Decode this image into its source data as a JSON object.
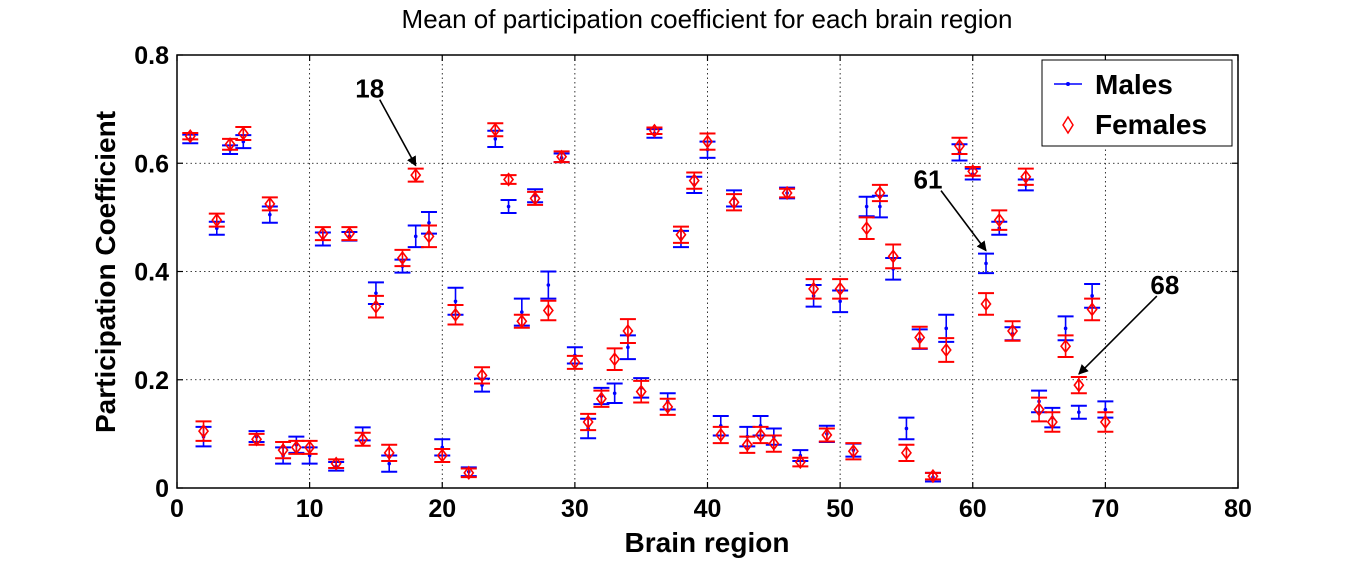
{
  "chart_data": {
    "type": "scatter",
    "title": "Mean of participation coefficient for each brain region",
    "xlabel": "Brain region",
    "ylabel": "Participation Coefficient",
    "xlim": [
      0,
      80
    ],
    "ylim": [
      0,
      0.8
    ],
    "xticks": [
      0,
      10,
      20,
      30,
      40,
      50,
      60,
      70,
      80
    ],
    "yticks": [
      0,
      0.2,
      0.4,
      0.6,
      0.8
    ],
    "xtick_labels": [
      "0",
      "10",
      "20",
      "30",
      "40",
      "50",
      "60",
      "70",
      "80"
    ],
    "ytick_labels": [
      "0",
      "0.2",
      "0.4",
      "0.6",
      "0.8"
    ],
    "grid": true,
    "legend_position": "top-right",
    "series": [
      {
        "name": "Males",
        "color": "#0000ff",
        "marker": "dot",
        "x": [
          1,
          2,
          3,
          4,
          5,
          6,
          7,
          8,
          9,
          10,
          11,
          12,
          13,
          14,
          15,
          16,
          17,
          18,
          19,
          20,
          21,
          22,
          23,
          24,
          25,
          26,
          27,
          28,
          29,
          30,
          31,
          32,
          33,
          34,
          35,
          36,
          37,
          38,
          39,
          40,
          41,
          42,
          43,
          44,
          45,
          46,
          47,
          48,
          49,
          50,
          51,
          52,
          53,
          54,
          55,
          56,
          57,
          58,
          59,
          60,
          61,
          62,
          63,
          64,
          65,
          66,
          67,
          68,
          69,
          70
        ],
        "y": [
          0.645,
          0.095,
          0.48,
          0.625,
          0.64,
          0.095,
          0.505,
          0.06,
          0.08,
          0.06,
          0.46,
          0.04,
          0.465,
          0.1,
          0.36,
          0.045,
          0.41,
          0.465,
          0.49,
          0.075,
          0.345,
          0.03,
          0.19,
          0.645,
          0.52,
          0.325,
          0.54,
          0.375,
          0.61,
          0.245,
          0.11,
          0.17,
          0.175,
          0.26,
          0.185,
          0.655,
          0.16,
          0.46,
          0.56,
          0.625,
          0.115,
          0.535,
          0.095,
          0.115,
          0.095,
          0.545,
          0.06,
          0.355,
          0.1,
          0.345,
          0.07,
          0.52,
          0.52,
          0.405,
          0.11,
          0.275,
          0.02,
          0.295,
          0.62,
          0.58,
          0.415,
          0.48,
          0.285,
          0.56,
          0.16,
          0.13,
          0.295,
          0.14,
          0.355,
          0.145
        ],
        "error": [
          0.008,
          0.018,
          0.012,
          0.008,
          0.012,
          0.01,
          0.015,
          0.015,
          0.015,
          0.015,
          0.012,
          0.008,
          0.008,
          0.012,
          0.02,
          0.015,
          0.012,
          0.02,
          0.02,
          0.015,
          0.025,
          0.008,
          0.012,
          0.015,
          0.012,
          0.025,
          0.012,
          0.025,
          0.008,
          0.015,
          0.018,
          0.015,
          0.018,
          0.022,
          0.018,
          0.008,
          0.015,
          0.015,
          0.015,
          0.015,
          0.018,
          0.015,
          0.018,
          0.018,
          0.015,
          0.01,
          0.01,
          0.02,
          0.015,
          0.02,
          0.012,
          0.018,
          0.02,
          0.02,
          0.02,
          0.018,
          0.008,
          0.025,
          0.015,
          0.01,
          0.018,
          0.012,
          0.012,
          0.01,
          0.02,
          0.018,
          0.022,
          0.012,
          0.022,
          0.015
        ]
      },
      {
        "name": "Females",
        "color": "#ff0000",
        "marker": "diamond",
        "x": [
          1,
          2,
          3,
          4,
          5,
          6,
          7,
          8,
          9,
          10,
          11,
          12,
          13,
          14,
          15,
          16,
          17,
          18,
          19,
          20,
          21,
          22,
          23,
          24,
          25,
          26,
          27,
          28,
          29,
          30,
          31,
          32,
          33,
          34,
          35,
          36,
          37,
          38,
          39,
          40,
          41,
          42,
          43,
          44,
          45,
          46,
          47,
          48,
          49,
          50,
          51,
          52,
          53,
          54,
          55,
          56,
          57,
          58,
          59,
          60,
          61,
          62,
          63,
          64,
          65,
          66,
          67,
          68,
          69,
          70
        ],
        "y": [
          0.65,
          0.105,
          0.495,
          0.635,
          0.655,
          0.09,
          0.525,
          0.07,
          0.075,
          0.075,
          0.47,
          0.045,
          0.47,
          0.09,
          0.335,
          0.065,
          0.425,
          0.578,
          0.465,
          0.06,
          0.32,
          0.028,
          0.208,
          0.662,
          0.57,
          0.308,
          0.535,
          0.328,
          0.612,
          0.232,
          0.122,
          0.165,
          0.238,
          0.29,
          0.178,
          0.66,
          0.15,
          0.468,
          0.568,
          0.64,
          0.098,
          0.528,
          0.08,
          0.098,
          0.082,
          0.545,
          0.048,
          0.368,
          0.098,
          0.368,
          0.068,
          0.48,
          0.545,
          0.428,
          0.065,
          0.278,
          0.022,
          0.255,
          0.632,
          0.585,
          0.34,
          0.495,
          0.29,
          0.575,
          0.145,
          0.122,
          0.262,
          0.19,
          0.33,
          0.122
        ],
        "error": [
          0.006,
          0.018,
          0.012,
          0.01,
          0.012,
          0.01,
          0.012,
          0.015,
          0.012,
          0.012,
          0.012,
          0.008,
          0.012,
          0.012,
          0.02,
          0.015,
          0.015,
          0.012,
          0.02,
          0.012,
          0.018,
          0.008,
          0.015,
          0.012,
          0.008,
          0.012,
          0.012,
          0.018,
          0.01,
          0.012,
          0.015,
          0.015,
          0.02,
          0.022,
          0.02,
          0.006,
          0.015,
          0.015,
          0.015,
          0.015,
          0.015,
          0.015,
          0.015,
          0.015,
          0.015,
          0.008,
          0.008,
          0.018,
          0.012,
          0.018,
          0.015,
          0.02,
          0.015,
          0.022,
          0.015,
          0.02,
          0.006,
          0.022,
          0.015,
          0.008,
          0.02,
          0.018,
          0.018,
          0.015,
          0.022,
          0.018,
          0.02,
          0.015,
          0.02,
          0.018
        ]
      }
    ],
    "annotations": [
      {
        "text": "18",
        "x": 18
      },
      {
        "text": "61",
        "x": 61
      },
      {
        "text": "68",
        "x": 68
      }
    ]
  }
}
